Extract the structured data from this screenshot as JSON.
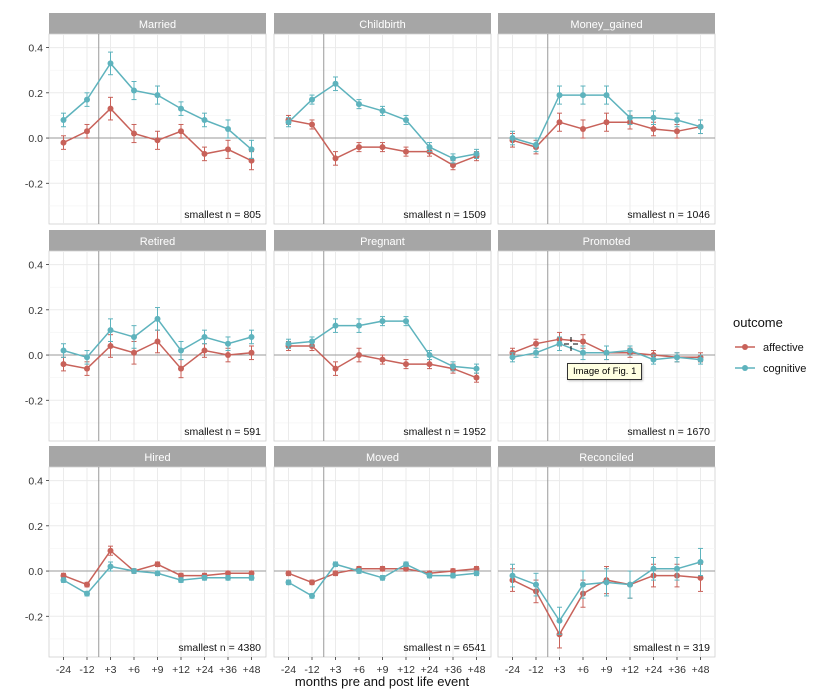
{
  "colors": {
    "affective": "#c8625a",
    "cognitive": "#5eb3bd",
    "strip": "#a6a6a6",
    "grid": "#ebebeb",
    "panel_border": "#d0d0d0",
    "zero_line": "#9a9a9a"
  },
  "tooltip_text": "Image of Fig. 1",
  "chart_data": {
    "type": "line",
    "xlabel": "months pre and post life event",
    "x_ticks": [
      "-24",
      "-12",
      "+3",
      "+6",
      "+9",
      "+12",
      "+24",
      "+36",
      "+48"
    ],
    "event_line_after": "-12",
    "y_ticks": [
      "0.4",
      "0.2",
      "0.0",
      "-0.2"
    ],
    "ylim": [
      -0.38,
      0.46
    ],
    "legend": {
      "title": "outcome",
      "position": "right",
      "entries": [
        "affective",
        "cognitive"
      ]
    },
    "panels": [
      {
        "title": "Married",
        "note": "smallest n = 805",
        "series": [
          {
            "name": "affective",
            "values": [
              -0.02,
              0.03,
              0.13,
              0.02,
              -0.01,
              0.03,
              -0.07,
              -0.05,
              -0.1
            ],
            "err": [
              0.03,
              0.03,
              0.05,
              0.04,
              0.04,
              0.03,
              0.03,
              0.04,
              0.04
            ]
          },
          {
            "name": "cognitive",
            "values": [
              0.08,
              0.17,
              0.33,
              0.21,
              0.19,
              0.13,
              0.08,
              0.04,
              -0.05
            ],
            "err": [
              0.03,
              0.03,
              0.05,
              0.04,
              0.04,
              0.03,
              0.03,
              0.04,
              0.04
            ]
          }
        ]
      },
      {
        "title": "Childbirth",
        "note": "smallest n = 1509",
        "series": [
          {
            "name": "affective",
            "values": [
              0.08,
              0.06,
              -0.09,
              -0.04,
              -0.04,
              -0.06,
              -0.06,
              -0.12,
              -0.08
            ],
            "err": [
              0.02,
              0.02,
              0.03,
              0.02,
              0.02,
              0.02,
              0.02,
              0.02,
              0.02
            ]
          },
          {
            "name": "cognitive",
            "values": [
              0.07,
              0.17,
              0.24,
              0.15,
              0.12,
              0.08,
              -0.04,
              -0.09,
              -0.07
            ],
            "err": [
              0.02,
              0.02,
              0.03,
              0.02,
              0.02,
              0.02,
              0.02,
              0.02,
              0.02
            ]
          }
        ]
      },
      {
        "title": "Money_gained",
        "note": "smallest n = 1046",
        "series": [
          {
            "name": "affective",
            "values": [
              -0.01,
              -0.04,
              0.07,
              0.04,
              0.07,
              0.07,
              0.04,
              0.03,
              0.05
            ],
            "err": [
              0.03,
              0.03,
              0.04,
              0.04,
              0.04,
              0.03,
              0.03,
              0.03,
              0.03
            ]
          },
          {
            "name": "cognitive",
            "values": [
              0.0,
              -0.03,
              0.19,
              0.19,
              0.19,
              0.09,
              0.09,
              0.08,
              0.05
            ],
            "err": [
              0.03,
              0.03,
              0.04,
              0.04,
              0.04,
              0.03,
              0.03,
              0.03,
              0.03
            ]
          }
        ]
      },
      {
        "title": "Retired",
        "note": "smallest n = 591",
        "series": [
          {
            "name": "affective",
            "values": [
              -0.04,
              -0.06,
              0.04,
              0.01,
              0.06,
              -0.06,
              0.02,
              0.0,
              0.01
            ],
            "err": [
              0.03,
              0.03,
              0.05,
              0.05,
              0.05,
              0.04,
              0.03,
              0.03,
              0.03
            ]
          },
          {
            "name": "cognitive",
            "values": [
              0.02,
              -0.01,
              0.11,
              0.08,
              0.16,
              0.02,
              0.08,
              0.05,
              0.08
            ],
            "err": [
              0.03,
              0.03,
              0.05,
              0.05,
              0.05,
              0.04,
              0.03,
              0.03,
              0.03
            ]
          }
        ]
      },
      {
        "title": "Pregnant",
        "note": "smallest n = 1952",
        "series": [
          {
            "name": "affective",
            "values": [
              0.04,
              0.04,
              -0.06,
              0.0,
              -0.02,
              -0.04,
              -0.04,
              -0.06,
              -0.1
            ],
            "err": [
              0.02,
              0.02,
              0.03,
              0.03,
              0.02,
              0.02,
              0.02,
              0.02,
              0.02
            ]
          },
          {
            "name": "cognitive",
            "values": [
              0.05,
              0.06,
              0.13,
              0.13,
              0.15,
              0.15,
              0.0,
              -0.05,
              -0.06
            ],
            "err": [
              0.02,
              0.02,
              0.03,
              0.03,
              0.02,
              0.02,
              0.02,
              0.02,
              0.02
            ]
          }
        ]
      },
      {
        "title": "Promoted",
        "note": "smallest n = 1670",
        "series": [
          {
            "name": "affective",
            "values": [
              0.01,
              0.05,
              0.07,
              0.06,
              0.01,
              0.01,
              0.0,
              -0.01,
              -0.01
            ],
            "err": [
              0.02,
              0.02,
              0.03,
              0.03,
              0.03,
              0.02,
              0.02,
              0.02,
              0.02
            ]
          },
          {
            "name": "cognitive",
            "values": [
              -0.01,
              0.01,
              0.05,
              0.01,
              0.01,
              0.02,
              -0.02,
              -0.01,
              -0.02
            ],
            "err": [
              0.02,
              0.02,
              0.03,
              0.03,
              0.03,
              0.02,
              0.02,
              0.02,
              0.02
            ]
          }
        ]
      },
      {
        "title": "Hired",
        "note": "smallest n = 4380",
        "series": [
          {
            "name": "affective",
            "values": [
              -0.02,
              -0.06,
              0.09,
              0.0,
              0.03,
              -0.02,
              -0.02,
              -0.01,
              -0.01
            ],
            "err": [
              0.01,
              0.01,
              0.02,
              0.01,
              0.01,
              0.01,
              0.01,
              0.01,
              0.01
            ]
          },
          {
            "name": "cognitive",
            "values": [
              -0.04,
              -0.1,
              0.02,
              0.0,
              -0.01,
              -0.04,
              -0.03,
              -0.03,
              -0.03
            ],
            "err": [
              0.01,
              0.01,
              0.02,
              0.01,
              0.01,
              0.01,
              0.01,
              0.01,
              0.01
            ]
          }
        ]
      },
      {
        "title": "Moved",
        "note": "smallest n = 6541",
        "series": [
          {
            "name": "affective",
            "values": [
              -0.01,
              -0.05,
              -0.01,
              0.01,
              0.01,
              0.01,
              -0.01,
              0.0,
              0.01
            ],
            "err": [
              0.01,
              0.01,
              0.01,
              0.01,
              0.01,
              0.01,
              0.01,
              0.01,
              0.01
            ]
          },
          {
            "name": "cognitive",
            "values": [
              -0.05,
              -0.11,
              0.03,
              0.0,
              -0.03,
              0.03,
              -0.02,
              -0.02,
              -0.01
            ],
            "err": [
              0.01,
              0.01,
              0.01,
              0.01,
              0.01,
              0.01,
              0.01,
              0.01,
              0.01
            ]
          }
        ]
      },
      {
        "title": "Reconciled",
        "note": "smallest n = 319",
        "series": [
          {
            "name": "affective",
            "values": [
              -0.04,
              -0.09,
              -0.28,
              -0.1,
              -0.04,
              -0.06,
              -0.02,
              -0.02,
              -0.03
            ],
            "err": [
              0.05,
              0.05,
              0.06,
              0.06,
              0.06,
              0.06,
              0.05,
              0.05,
              0.06
            ]
          },
          {
            "name": "cognitive",
            "values": [
              -0.02,
              -0.06,
              -0.22,
              -0.06,
              -0.05,
              -0.06,
              0.01,
              0.01,
              0.04
            ],
            "err": [
              0.05,
              0.05,
              0.06,
              0.06,
              0.06,
              0.06,
              0.05,
              0.05,
              0.06
            ]
          }
        ]
      }
    ]
  }
}
